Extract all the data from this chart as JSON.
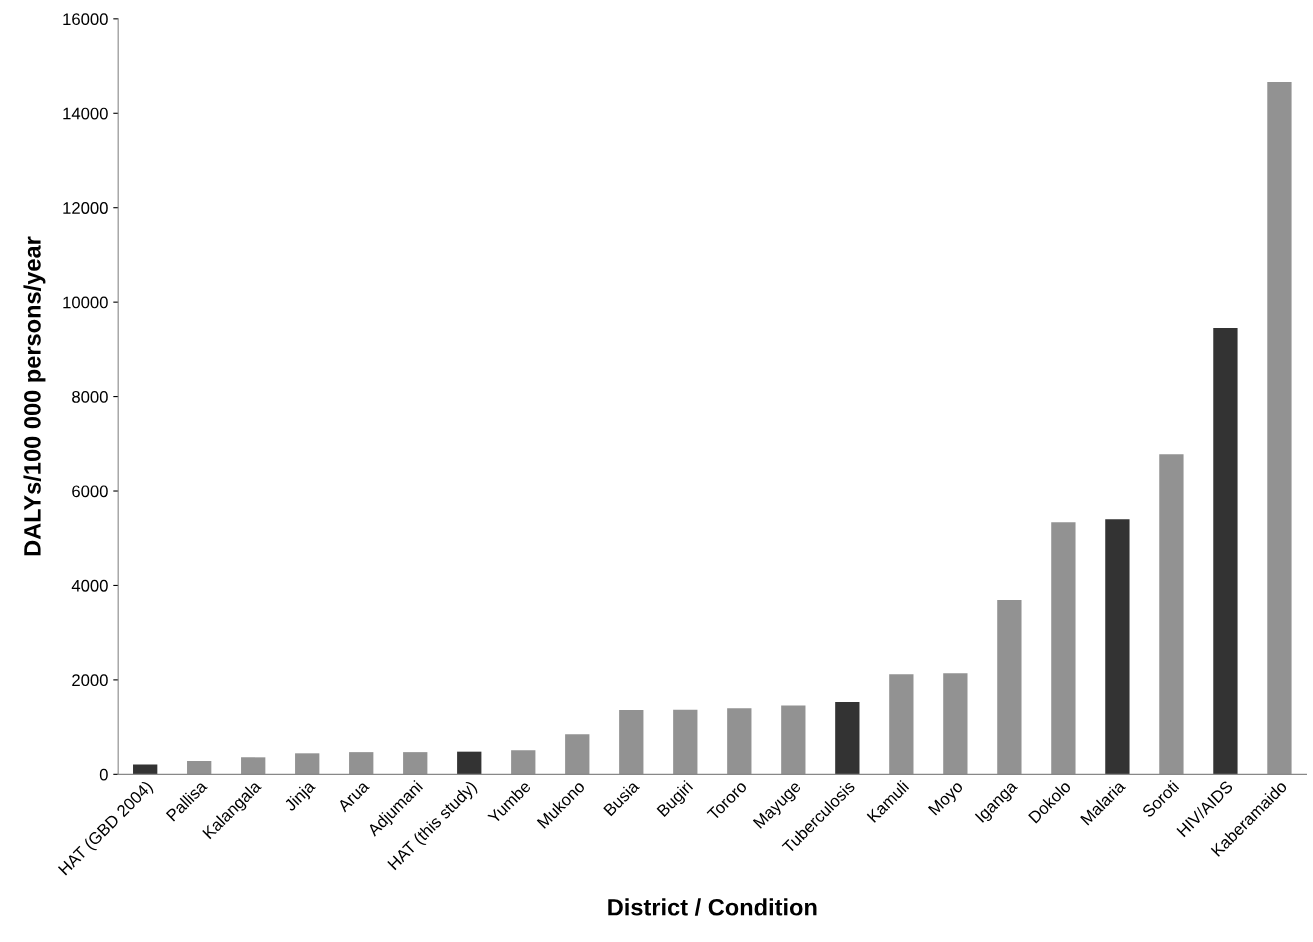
{
  "chart_data": {
    "type": "bar",
    "xlabel": "District / Condition",
    "ylabel": "DALYs/100 000 persons/year",
    "categories": [
      "HAT (GBD 2004)",
      "Pallisa",
      "Kalangala",
      "Jinja",
      "Arua",
      "Adjumani",
      "HAT (this study)",
      "Yumbe",
      "Mukono",
      "Busia",
      "Bugiri",
      "Tororo",
      "Mayuge",
      "Tuberculosis",
      "Kamuli",
      "Moyo",
      "Iganga",
      "Dokolo",
      "Malaria",
      "Soroti",
      "HIV/AIDS",
      "Kaberamaido"
    ],
    "values": [
      210,
      280,
      360,
      445,
      470,
      470,
      480,
      510,
      850,
      1360,
      1370,
      1400,
      1460,
      1530,
      2120,
      2140,
      3690,
      5340,
      5400,
      6780,
      9450,
      14660
    ],
    "colors": [
      "#333333",
      "#929292",
      "#929292",
      "#929292",
      "#929292",
      "#929292",
      "#333333",
      "#929292",
      "#929292",
      "#929292",
      "#929292",
      "#929292",
      "#929292",
      "#333333",
      "#929292",
      "#929292",
      "#929292",
      "#929292",
      "#333333",
      "#929292",
      "#333333",
      "#929292"
    ],
    "ylim": [
      0,
      16000
    ],
    "yticks": [
      0,
      2000,
      4000,
      6000,
      8000,
      10000,
      12000,
      14000,
      16000
    ],
    "grid": false,
    "legend": false
  }
}
